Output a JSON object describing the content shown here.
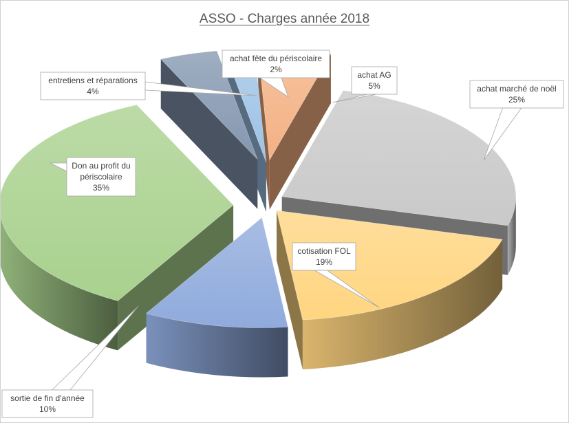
{
  "chart_data": {
    "type": "pie",
    "title": "ASSO - Charges année 2018",
    "slices": [
      {
        "label": "achat fête du périscolaire",
        "value": 2,
        "value_label": "2%",
        "color": "#9dc3e6"
      },
      {
        "label": "achat AG",
        "value": 5,
        "value_label": "5%",
        "color": "#f4b183"
      },
      {
        "label": "achat marché de noël",
        "value": 25,
        "value_label": "25%",
        "color": "#c9c9c9"
      },
      {
        "label": "cotisation FOL",
        "value": 19,
        "value_label": "19%",
        "color": "#ffd580"
      },
      {
        "label": "sortie de fin d'année",
        "value": 10,
        "value_label": "10%",
        "color": "#8faadc"
      },
      {
        "label": "Don au profit du périscolaire",
        "value": 35,
        "value_label": "35%",
        "color": "#a9d18e"
      },
      {
        "label": "entretiens et réparations",
        "value": 4,
        "value_label": "4%",
        "color": "#8497b0"
      }
    ],
    "style": "3d-exploded",
    "legend": "none"
  }
}
